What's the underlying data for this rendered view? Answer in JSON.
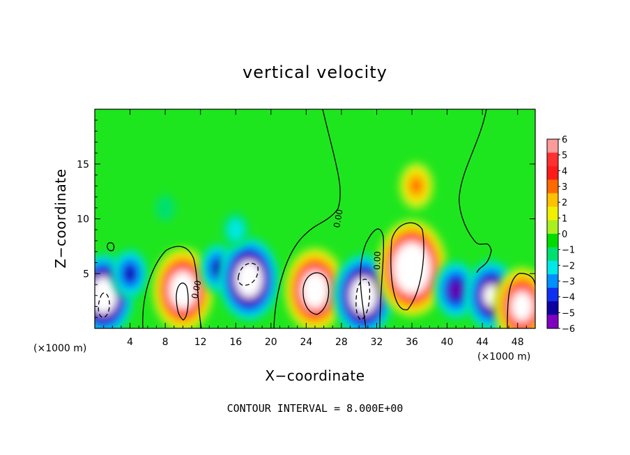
{
  "chart_data": {
    "type": "heatmap",
    "title": "vertical velocity",
    "xlabel": "X−coordinate",
    "ylabel": "Z−coordinate",
    "x_unit_left": "(×1000 m)",
    "x_unit_right": "(×1000 m)",
    "xlim": [
      0,
      50
    ],
    "ylim": [
      0,
      20
    ],
    "x_ticks": [
      4,
      8,
      12,
      16,
      20,
      24,
      28,
      32,
      36,
      40,
      44,
      48
    ],
    "y_ticks": [
      5,
      10,
      15
    ],
    "colorbar": {
      "range": [
        -6,
        6
      ],
      "labels": [
        "6",
        "5",
        "4",
        "3",
        "2",
        "1",
        "0",
        "−1",
        "−2",
        "−3",
        "−4",
        "−5",
        "−6"
      ],
      "colors": [
        "#ff9a9a",
        "#ff3030",
        "#ff1a1a",
        "#ff6a00",
        "#ffc000",
        "#f0f000",
        "#a8f020",
        "#00dc00",
        "#00e070",
        "#00e8e8",
        "#0090ff",
        "#1030f0",
        "#1000a0",
        "#8000c0"
      ]
    },
    "background_color": "#1ee61e",
    "features": [
      {
        "x": 1,
        "z": 3,
        "value": -10
      },
      {
        "x": 4,
        "z": 5,
        "value": -4.5
      },
      {
        "x": 10,
        "z": 3.5,
        "value": 10
      },
      {
        "x": 14,
        "z": 5.5,
        "value": -4.5
      },
      {
        "x": 17.5,
        "z": 4.5,
        "value": -10
      },
      {
        "x": 25,
        "z": 3.5,
        "value": 10
      },
      {
        "x": 30.5,
        "z": 3,
        "value": -10
      },
      {
        "x": 36,
        "z": 5.5,
        "value": 12
      },
      {
        "x": 36.5,
        "z": 13,
        "value": 4
      },
      {
        "x": 41,
        "z": 3.5,
        "value": -6
      },
      {
        "x": 45,
        "z": 3,
        "value": -8
      },
      {
        "x": 48.5,
        "z": 2,
        "value": 9
      },
      {
        "x": 16,
        "z": 9,
        "value": -2
      },
      {
        "x": 8,
        "z": 11,
        "value": -0.7
      }
    ],
    "contour_labels": [
      "0.00",
      "0.00",
      "0.00"
    ],
    "contour_interval_note": "CONTOUR INTERVAL = 8.000E+00"
  }
}
